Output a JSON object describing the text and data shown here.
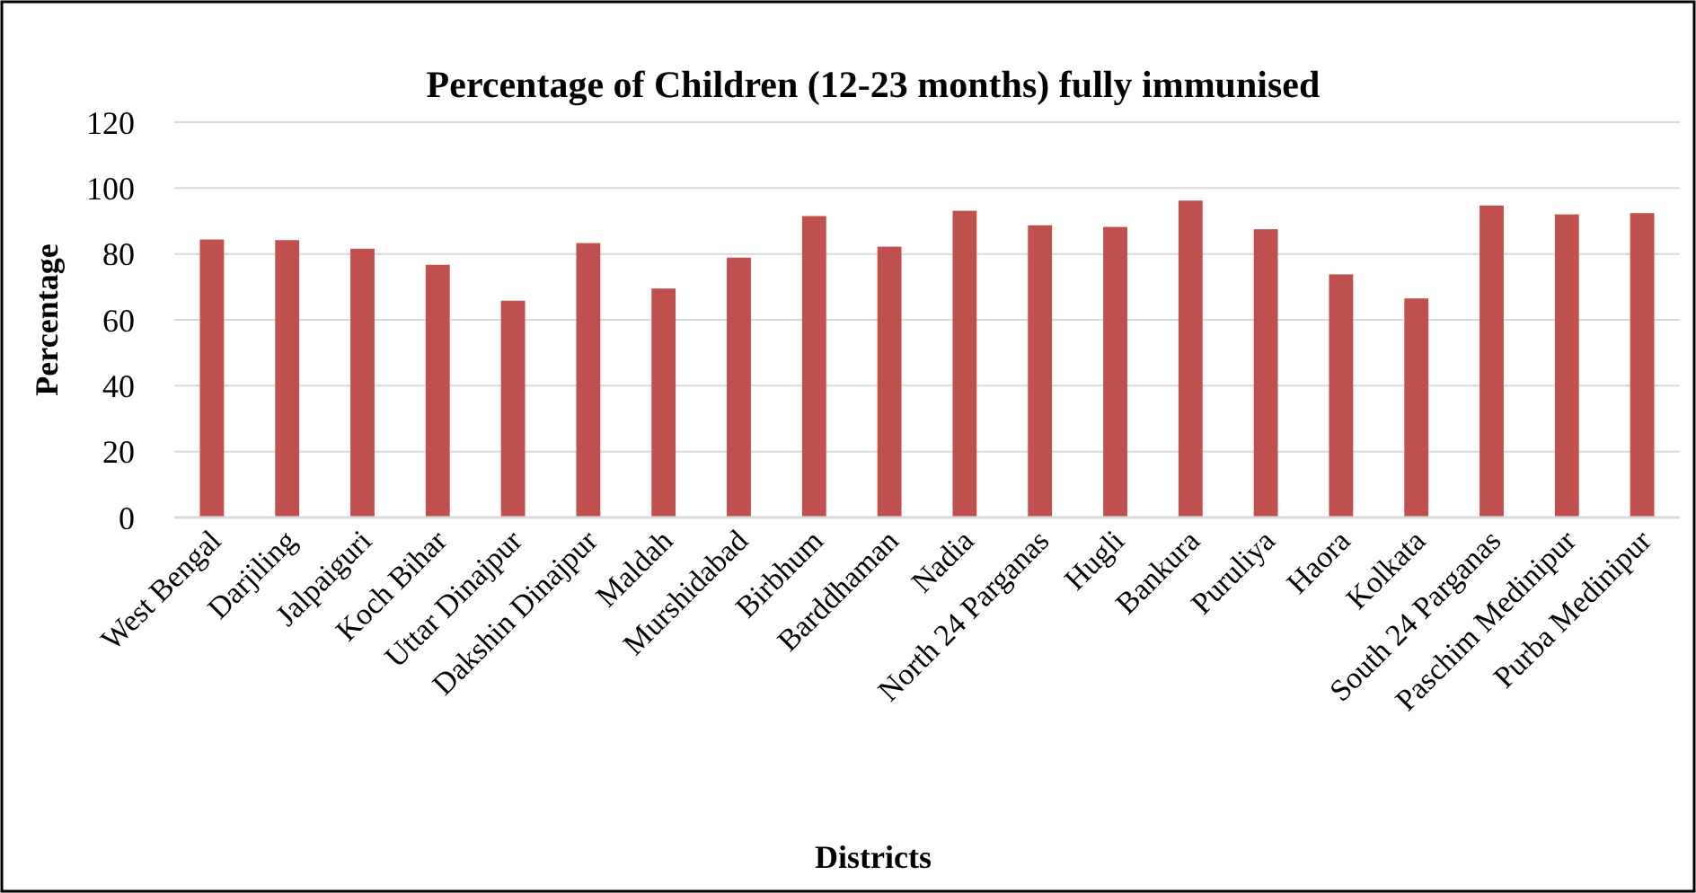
{
  "chart_data": {
    "type": "bar",
    "title": "Percentage of Children (12-23 months) fully immunised",
    "xlabel": "Districts",
    "ylabel": "Percentage",
    "categories": [
      "West Bengal",
      "Darjiling",
      "Jalpaiguri",
      "Koch Bihar",
      "Uttar Dinajpur",
      "Dakshin Dinajpur",
      "Maldah",
      "Murshidabad",
      "Birbhum",
      "Barddhaman",
      "Nadia",
      "North 24 Parganas",
      "Hugli",
      "Bankura",
      "Puruliya",
      "Haora",
      "Kolkata",
      "South 24 Parganas",
      "Paschim Medinipur",
      "Purba Medinipur"
    ],
    "values": [
      84.4,
      84.2,
      81.6,
      76.7,
      65.8,
      83.3,
      69.5,
      78.9,
      91.5,
      82.2,
      93.1,
      88.7,
      88.2,
      96.2,
      87.5,
      73.8,
      66.5,
      94.7,
      92.0,
      92.4
    ],
    "color": "#c0504d",
    "ylim": [
      0,
      120
    ],
    "yticks": [
      0,
      20,
      40,
      60,
      80,
      100,
      120
    ],
    "grid": "y"
  }
}
